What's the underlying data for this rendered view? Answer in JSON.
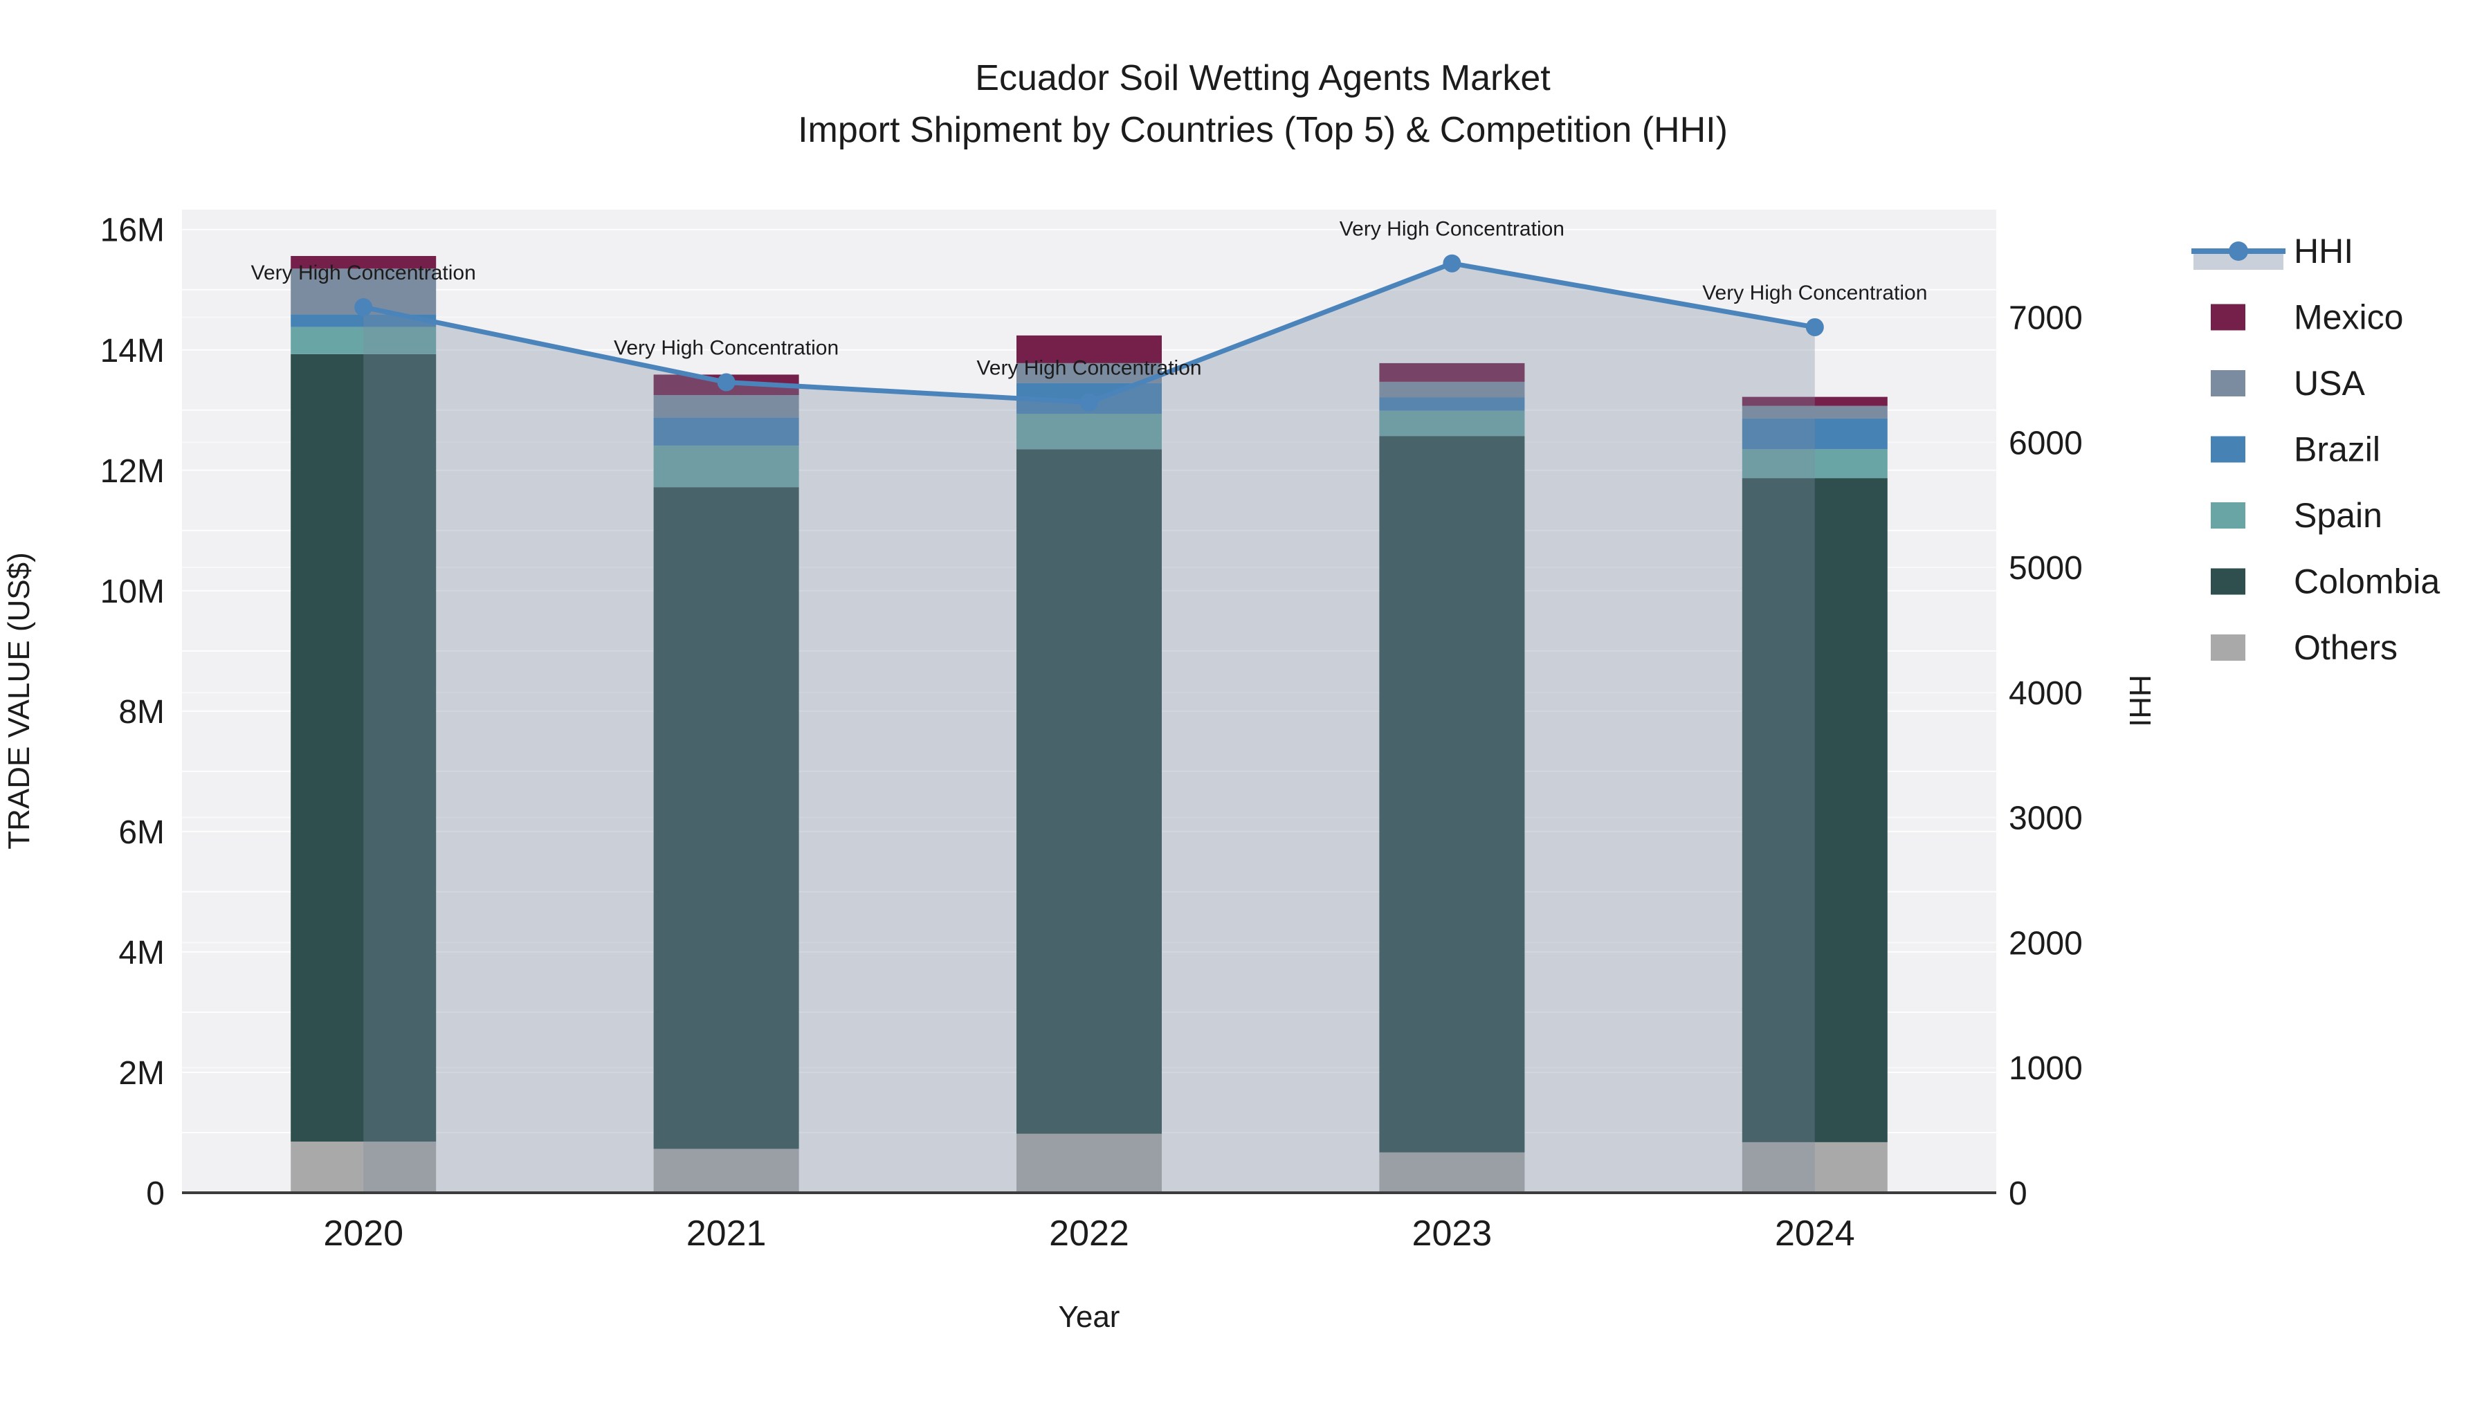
{
  "title_line1": "Ecuador Soil Wetting Agents Market",
  "title_line2": "Import Shipment by Countries (Top 5) & Competition (HHI)",
  "chart_data": {
    "type": "bar",
    "subtype": "stacked-bars-with-line",
    "categories": [
      "2020",
      "2021",
      "2022",
      "2023",
      "2024"
    ],
    "xlabel": "Year",
    "ylabel_left": "TRADE VALUE (US$)",
    "ylabel_right": "HHI",
    "y_left": {
      "min": 0,
      "max": 16330000,
      "tick_values": [
        0,
        2000000,
        4000000,
        6000000,
        8000000,
        10000000,
        12000000,
        14000000,
        16000000
      ],
      "tick_labels": [
        "0",
        "2M",
        "4M",
        "6M",
        "8M",
        "10M",
        "12M",
        "14M",
        "16M"
      ],
      "grid_step": 1000000
    },
    "y_right": {
      "min": 0,
      "max": 7860,
      "tick_values": [
        0,
        1000,
        2000,
        3000,
        4000,
        5000,
        6000,
        7000
      ],
      "tick_labels": [
        "0",
        "1000",
        "2000",
        "3000",
        "4000",
        "5000",
        "6000",
        "7000"
      ],
      "grid_step": 1000
    },
    "series": [
      {
        "name": "Mexico",
        "color": "#75204B",
        "values": [
          210000,
          340000,
          460000,
          310000,
          150000
        ]
      },
      {
        "name": "USA",
        "color": "#7C8CA0",
        "values": [
          760000,
          370000,
          330000,
          260000,
          210000
        ]
      },
      {
        "name": "Brazil",
        "color": "#4682B4",
        "values": [
          210000,
          470000,
          510000,
          220000,
          510000
        ]
      },
      {
        "name": "Spain",
        "color": "#6AA5A6",
        "values": [
          450000,
          690000,
          590000,
          420000,
          480000
        ]
      },
      {
        "name": "Colombia",
        "color": "#2F4F4F",
        "values": [
          13080000,
          10990000,
          11370000,
          11900000,
          11030000
        ]
      },
      {
        "name": "Others",
        "color": "#A9A9A9",
        "values": [
          850000,
          730000,
          980000,
          670000,
          840000
        ]
      }
    ],
    "line_series": {
      "name": "HHI",
      "color": "#4B84BB",
      "area_fill": "rgba(124,140,161,0.33)",
      "legend_band_color": "#C9D0DA",
      "values": [
        7080,
        6480,
        6320,
        7430,
        6920
      ]
    },
    "annotation_text": "Very High Concentration",
    "legend_order": [
      "HHI",
      "Mexico",
      "USA",
      "Brazil",
      "Spain",
      "Colombia",
      "Others"
    ],
    "layout_hints": {
      "plot_bg": "#F1F1F3",
      "grid_color": "#FFFFFF",
      "axis_line_color": "#3C3C3C",
      "legend_position": "right",
      "grid": "on"
    }
  }
}
